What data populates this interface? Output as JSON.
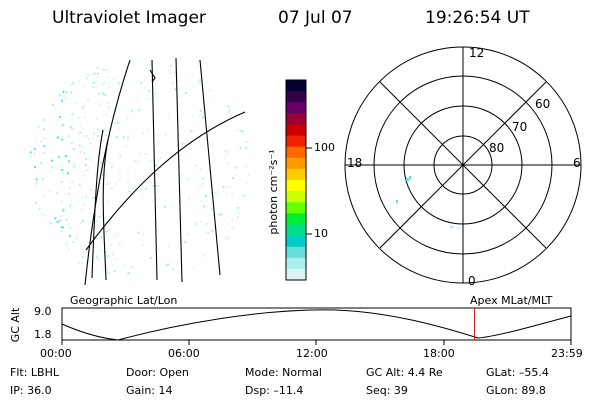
{
  "header": {
    "title": "Ultraviolet Imager",
    "date": "07 Jul 07",
    "time": "19:26:54 UT"
  },
  "colorbar": {
    "label": "photon cm⁻²s⁻¹",
    "ticks": [
      "100",
      "10"
    ],
    "colors": [
      "#000033",
      "#330044",
      "#660066",
      "#990033",
      "#cc0000",
      "#ee2200",
      "#ff6600",
      "#ff9900",
      "#ffcc00",
      "#ffff00",
      "#ccff00",
      "#66ff00",
      "#00ee33",
      "#00dd88",
      "#00cccc",
      "#66dddd",
      "#aaeeee",
      "#ddf4f4"
    ]
  },
  "polar": {
    "mlt_labels": {
      "top": "12",
      "left": "18",
      "right": "6",
      "bottom": "0"
    },
    "lat_labels": [
      "60",
      "70",
      "80"
    ]
  },
  "timeline": {
    "left_label": "Geographic Lat/Lon",
    "right_label": "Apex MLat/MLT",
    "axis_title": "GC Alt",
    "y_ticks": [
      "9.0",
      "1.8"
    ],
    "x_ticks": [
      "00:00",
      "06:00",
      "12:00",
      "18:00",
      "23:59"
    ],
    "current_marker_hour": 19.45
  },
  "info": {
    "filter": "Flt: LBHL",
    "door": "Door: Open",
    "mode": "Mode: Normal",
    "gc_alt": "GC Alt: 4.4 Re",
    "glat": "GLat: –55.4",
    "ip": "IP: 36.0",
    "gain": "Gain: 14",
    "dsp": "Dsp:  –11.4",
    "seq": "Seq: 39",
    "glon": "GLon:  89.8"
  }
}
